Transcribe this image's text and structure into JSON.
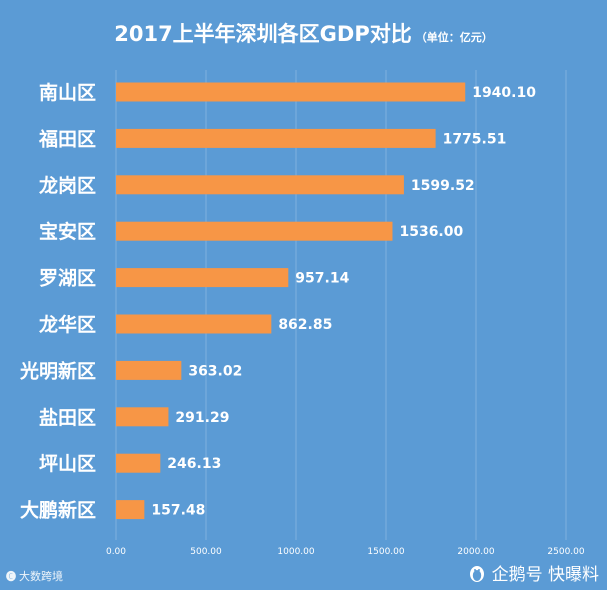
{
  "header": {
    "title": "2017上半年深圳各区GDP对比",
    "unit": "（单位：亿元）"
  },
  "chart_data": {
    "type": "bar",
    "orientation": "horizontal",
    "title": "2017上半年深圳各区GDP对比",
    "unit": "（单位：亿元）",
    "categories": [
      "南山区",
      "福田区",
      "龙岗区",
      "宝安区",
      "罗湖区",
      "龙华区",
      "光明新区",
      "盐田区",
      "坪山区",
      "大鹏新区"
    ],
    "values": [
      1940.1,
      1775.51,
      1599.52,
      1536.0,
      957.14,
      862.85,
      363.02,
      291.29,
      246.13,
      157.48
    ],
    "value_labels": [
      "1940.10",
      "1775.51",
      "1599.52",
      "1536.00",
      "957.14",
      "862.85",
      "363.02",
      "291.29",
      "246.13",
      "157.48"
    ],
    "xlim": [
      0,
      2500
    ],
    "ticks": [
      0,
      500,
      1000,
      1500,
      2000,
      2500
    ],
    "tick_labels": [
      "0.00",
      "500.00",
      "1000.00",
      "1500.00",
      "2000.00",
      "2500.00"
    ],
    "grid": true,
    "bar_color": "#f79646"
  },
  "footer": {
    "left_logo": "🅒",
    "left_text": "大数跨境",
    "right_icon": "penguin-icon",
    "right_text": "企鹅号 快曝料"
  },
  "colors": {
    "background": "#5b9bd5",
    "bar": "#f79646",
    "text": "#ffffff"
  }
}
